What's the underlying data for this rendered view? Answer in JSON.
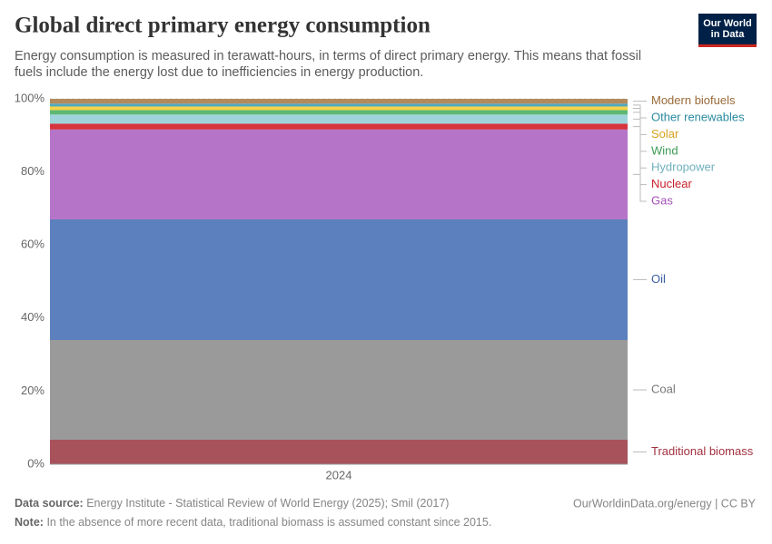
{
  "logo": "Our World in Data",
  "chart_data": {
    "type": "stacked-bar",
    "title": "Global direct primary energy consumption",
    "subtitle": [
      "Energy consumption is measured in terawatt-hours, in terms of direct primary energy. This means that fossil",
      "fuels include the energy lost due to inefficiencies in energy production."
    ],
    "categories": [
      "2024"
    ],
    "series": [
      {
        "name": "Traditional biomass",
        "color": "#a8525c",
        "text_color": "#a2313f",
        "values": [
          6.7
        ]
      },
      {
        "name": "Coal",
        "color": "#9a9a9a",
        "text_color": "#777777",
        "values": [
          27.3
        ]
      },
      {
        "name": "Oil",
        "color": "#5b80bd",
        "text_color": "#3a5fa0",
        "values": [
          33.0
        ]
      },
      {
        "name": "Gas",
        "color": "#b674c8",
        "text_color": "#a350b8",
        "values": [
          24.6
        ]
      },
      {
        "name": "Nuclear",
        "color": "#d6343e",
        "text_color": "#c8202c",
        "values": [
          1.6
        ]
      },
      {
        "name": "Hydropower",
        "color": "#9fd3dc",
        "text_color": "#6fb0bd",
        "values": [
          2.5
        ]
      },
      {
        "name": "Wind",
        "color": "#5cb873",
        "text_color": "#3d9a55",
        "values": [
          1.2
        ]
      },
      {
        "name": "Solar",
        "color": "#f4d34a",
        "text_color": "#d7a21d",
        "values": [
          1.0
        ]
      },
      {
        "name": "Other renewables",
        "color": "#52a9bb",
        "text_color": "#2a8aa0",
        "values": [
          0.8
        ]
      },
      {
        "name": "Modern biofuels",
        "color": "#b38a5c",
        "text_color": "#9a6a38",
        "values": [
          1.3
        ]
      }
    ],
    "ylim": [
      0,
      100
    ],
    "yticks": [
      {
        "value": 0,
        "label": "0%"
      },
      {
        "value": 20,
        "label": "20%"
      },
      {
        "value": 40,
        "label": "40%"
      },
      {
        "value": 60,
        "label": "60%"
      },
      {
        "value": 80,
        "label": "80%"
      },
      {
        "value": 100,
        "label": "100%"
      }
    ],
    "grid": true,
    "source_label": "Data source:",
    "source": "Energy Institute - Statistical Review of World Energy (2025); Smil (2017)",
    "url": "OurWorldinData.org/energy | CC BY",
    "note_label": "Note:",
    "note": "In the absence of more recent data, traditional biomass is assumed constant since 2015."
  }
}
